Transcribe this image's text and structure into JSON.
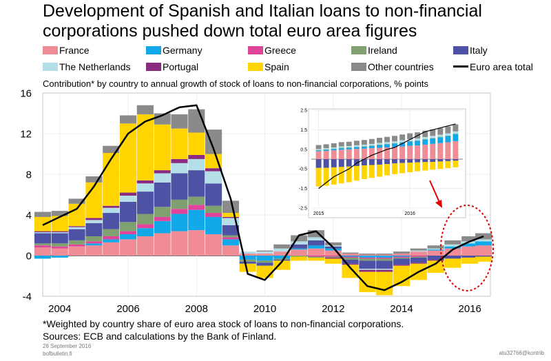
{
  "title": "Development of Spanish and Italian loans to non-financial corporations pushed down total euro area figures",
  "subtitle": "Contribution* by country to annual growth of stock of loans to non-financial corporations, % points",
  "legend": [
    {
      "label": "France",
      "color": "#f08c96"
    },
    {
      "label": "Germany",
      "color": "#10a8e8"
    },
    {
      "label": "Greece",
      "color": "#e0449a"
    },
    {
      "label": "Ireland",
      "color": "#80a070"
    },
    {
      "label": "Italy",
      "color": "#4e52a4"
    },
    {
      "label": "The Netherlands",
      "color": "#b4dfe8"
    },
    {
      "label": "Portugal",
      "color": "#8a2a80"
    },
    {
      "label": "Spain",
      "color": "#ffd400"
    },
    {
      "label": "Other countries",
      "color": "#8a8a8a"
    },
    {
      "label": "Euro area total",
      "color": "#000000"
    }
  ],
  "footnote": "*Weighted by country share of euro area stock of loans to non-financial corporations.",
  "sources": "Sources: ECB and calculations by the Bank of Finland.",
  "date": "28 September 2016",
  "site": "bofbulletin.fi",
  "code": "atu32766@kontrib",
  "chart_data": {
    "type": "bar",
    "stacked": true,
    "ylim": [
      -4,
      16
    ],
    "yticks": [
      "16",
      "12",
      "8",
      "4",
      "0",
      "-4"
    ],
    "xticks": [
      "2004",
      "2006",
      "2008",
      "2010",
      "2012",
      "2014",
      "2016"
    ],
    "x_range": [
      2003.5,
      2016.6
    ],
    "x": [
      2003.5,
      2004.0,
      2004.5,
      2005.0,
      2005.5,
      2006.0,
      2006.5,
      2007.0,
      2007.5,
      2008.0,
      2008.5,
      2009.0,
      2009.5,
      2010.0,
      2010.5,
      2011.0,
      2011.5,
      2012.0,
      2012.5,
      2013.0,
      2013.5,
      2014.0,
      2014.5,
      2015.0,
      2015.5,
      2016.0,
      2016.4
    ],
    "series": [
      {
        "name": "France",
        "values": [
          0.8,
          0.7,
          0.9,
          1.0,
          1.3,
          1.6,
          1.9,
          2.2,
          2.4,
          2.5,
          2.1,
          1.0,
          0.2,
          0.2,
          0.4,
          0.6,
          0.7,
          0.5,
          0.2,
          0.1,
          0.1,
          0.2,
          0.4,
          0.5,
          0.7,
          0.9,
          1.0
        ]
      },
      {
        "name": "Germany",
        "values": [
          -0.3,
          -0.2,
          0,
          0.2,
          0.3,
          0.5,
          0.8,
          1.2,
          1.7,
          2.0,
          1.7,
          0.6,
          -0.4,
          -0.5,
          -0.3,
          0.1,
          0.3,
          0.2,
          -0.1,
          -0.2,
          -0.2,
          -0.1,
          0,
          0.1,
          0.2,
          0.3,
          0.4
        ]
      },
      {
        "name": "Greece",
        "values": [
          0.2,
          0.2,
          0.2,
          0.2,
          0.3,
          0.3,
          0.4,
          0.4,
          0.5,
          0.5,
          0.4,
          0.2,
          0,
          0,
          0,
          0,
          -0.1,
          -0.1,
          -0.1,
          -0.1,
          -0.1,
          -0.1,
          -0.1,
          0,
          0,
          0,
          0
        ]
      },
      {
        "name": "Ireland",
        "values": [
          0.2,
          0.3,
          0.4,
          0.5,
          0.7,
          0.9,
          1.0,
          1.0,
          0.9,
          0.8,
          0.7,
          0.2,
          -0.2,
          -0.2,
          -0.1,
          -0.1,
          -0.1,
          -0.1,
          -0.2,
          -0.2,
          -0.2,
          -0.1,
          -0.1,
          0,
          0,
          0,
          0
        ]
      },
      {
        "name": "Italy",
        "values": [
          1.0,
          1.0,
          1.1,
          1.3,
          1.6,
          2.0,
          2.2,
          2.4,
          2.6,
          2.6,
          2.2,
          1.0,
          -0.2,
          -0.3,
          -0.1,
          0.4,
          0.5,
          0.2,
          -0.4,
          -0.8,
          -0.8,
          -0.6,
          -0.5,
          -0.4,
          -0.3,
          -0.2,
          -0.1
        ]
      },
      {
        "name": "The Netherlands",
        "values": [
          0.1,
          0.1,
          0.2,
          0.3,
          0.5,
          0.6,
          0.8,
          0.9,
          1.0,
          1.1,
          1.2,
          0.7,
          0.2,
          0.2,
          0.3,
          0.3,
          0.3,
          0.1,
          0,
          -0.1,
          -0.1,
          0,
          0.1,
          0.1,
          0.2,
          0.2,
          0.2
        ]
      },
      {
        "name": "Portugal",
        "values": [
          0.1,
          0.1,
          0.1,
          0.2,
          0.2,
          0.3,
          0.3,
          0.3,
          0.4,
          0.4,
          0.3,
          0.1,
          0,
          0,
          0,
          0,
          0,
          -0.1,
          -0.1,
          -0.2,
          -0.2,
          -0.1,
          -0.1,
          -0.1,
          0,
          0,
          0
        ]
      },
      {
        "name": "Spain",
        "values": [
          1.4,
          1.5,
          2.2,
          3.5,
          5.2,
          6.8,
          6.5,
          4.5,
          3.0,
          2.2,
          1.4,
          0.4,
          -0.8,
          -1.2,
          -0.9,
          -0.4,
          -0.3,
          -0.5,
          -1.3,
          -2.0,
          -2.3,
          -2.0,
          -1.6,
          -1.2,
          -0.9,
          -0.6,
          -0.5
        ]
      },
      {
        "name": "Other countries",
        "values": [
          0.5,
          0.5,
          0.5,
          0.6,
          0.7,
          0.8,
          0.9,
          1.1,
          1.4,
          2.3,
          2.4,
          1.2,
          0,
          0.1,
          0.4,
          0.6,
          0.7,
          0.3,
          0.1,
          0.1,
          0.1,
          0.2,
          0.2,
          0.3,
          0.4,
          0.5,
          0.6
        ]
      }
    ],
    "total": {
      "name": "Euro area total",
      "values": [
        3.0,
        3.8,
        4.6,
        6.8,
        9.5,
        12.0,
        13.2,
        13.8,
        14.6,
        14.8,
        10.5,
        5.6,
        -1.8,
        -2.4,
        -0.6,
        2.0,
        2.4,
        0.8,
        -1.2,
        -3.0,
        -3.4,
        -2.6,
        -1.6,
        -0.8,
        0.6,
        1.4,
        1.9
      ]
    },
    "inset": {
      "type": "bar",
      "stacked": true,
      "ylim": [
        -2.5,
        2.5
      ],
      "yticks": [
        "2.5",
        "1.5",
        "0.5",
        "-0.5",
        "-1.5",
        "-2.5"
      ],
      "xticks": [
        "2015",
        "2016"
      ],
      "x_range": [
        2014.92,
        2016.58
      ],
      "x": [
        2015.0,
        2015.083,
        2015.167,
        2015.25,
        2015.333,
        2015.417,
        2015.5,
        2015.583,
        2015.667,
        2015.75,
        2015.833,
        2015.917,
        2016.0,
        2016.083,
        2016.167,
        2016.25,
        2016.333,
        2016.417,
        2016.5
      ],
      "series": [
        {
          "name": "France",
          "values": [
            0.4,
            0.42,
            0.45,
            0.48,
            0.5,
            0.52,
            0.54,
            0.56,
            0.58,
            0.6,
            0.62,
            0.65,
            0.68,
            0.7,
            0.74,
            0.78,
            0.82,
            0.86,
            0.92
          ]
        },
        {
          "name": "Germany",
          "values": [
            0.05,
            0.06,
            0.07,
            0.08,
            0.08,
            0.09,
            0.1,
            0.12,
            0.14,
            0.16,
            0.18,
            0.2,
            0.22,
            0.24,
            0.26,
            0.28,
            0.3,
            0.32,
            0.36
          ]
        },
        {
          "name": "Ireland",
          "values": [
            0.02,
            0.02,
            0.02,
            0.02,
            0.02,
            0.02,
            0.02,
            0.02,
            0.02,
            0.02,
            0.02,
            0.02,
            0.02,
            0.02,
            0.02,
            0.02,
            0.02,
            0.02,
            0.02
          ]
        },
        {
          "name": "Italy",
          "values": [
            -0.45,
            -0.44,
            -0.42,
            -0.4,
            -0.38,
            -0.35,
            -0.32,
            -0.3,
            -0.28,
            -0.25,
            -0.22,
            -0.2,
            -0.18,
            -0.16,
            -0.15,
            -0.14,
            -0.12,
            -0.1,
            -0.08
          ]
        },
        {
          "name": "The Netherlands",
          "values": [
            0.05,
            0.06,
            0.06,
            0.07,
            0.07,
            0.08,
            0.08,
            0.08,
            0.09,
            0.09,
            0.09,
            0.1,
            0.1,
            0.1,
            0.11,
            0.11,
            0.11,
            0.12,
            0.12
          ]
        },
        {
          "name": "Spain",
          "values": [
            -0.95,
            -0.92,
            -0.88,
            -0.84,
            -0.8,
            -0.75,
            -0.7,
            -0.66,
            -0.62,
            -0.58,
            -0.55,
            -0.52,
            -0.49,
            -0.46,
            -0.43,
            -0.4,
            -0.38,
            -0.36,
            -0.34
          ]
        },
        {
          "name": "Other countries",
          "values": [
            0.2,
            0.2,
            0.21,
            0.22,
            0.22,
            0.23,
            0.24,
            0.25,
            0.26,
            0.27,
            0.28,
            0.29,
            0.3,
            0.31,
            0.32,
            0.33,
            0.34,
            0.35,
            0.36
          ]
        }
      ],
      "total": {
        "name": "Euro area total",
        "values": [
          -1.5,
          -1.2,
          -0.9,
          -0.7,
          -0.5,
          -0.2,
          0.0,
          0.2,
          0.35,
          0.5,
          0.6,
          0.8,
          1.0,
          1.2,
          1.4,
          1.5,
          1.6,
          1.7,
          1.8
        ]
      }
    }
  }
}
